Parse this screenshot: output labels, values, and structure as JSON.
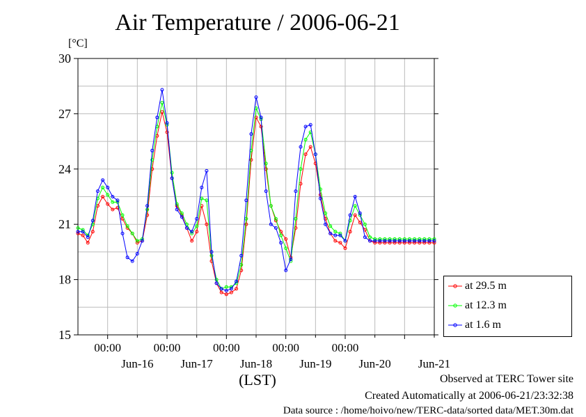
{
  "chart_data": {
    "type": "line",
    "title": "Air Temperature / 2006-06-21",
    "unit_label": "[°C]",
    "xlabel": "(LST)",
    "ylim": [
      15,
      30
    ],
    "y_ticks": [
      15,
      18,
      21,
      24,
      27,
      30
    ],
    "x_range_days": [
      "2006-06-15 12:00",
      "2006-06-21 12:00"
    ],
    "x_tick_time_label": "00:00",
    "x_day_labels": [
      "Jun-16",
      "Jun-17",
      "Jun-18",
      "Jun-19",
      "Jun-20",
      "Jun-21"
    ],
    "grid": true,
    "legend_position": "outside-right-bottom",
    "series": [
      {
        "name": "at 29.5 m",
        "color": "#ff0000",
        "x": [
          "06-15 12:00",
          "06-15 14:00",
          "06-15 16:00",
          "06-15 18:00",
          "06-15 20:00",
          "06-15 22:00",
          "06-16 00:00",
          "06-16 02:00",
          "06-16 04:00",
          "06-16 06:00",
          "06-16 08:00",
          "06-16 10:00",
          "06-16 12:00",
          "06-16 14:00",
          "06-16 16:00",
          "06-16 18:00",
          "06-16 20:00",
          "06-16 22:00",
          "06-17 00:00",
          "06-17 02:00",
          "06-17 04:00",
          "06-17 06:00",
          "06-17 08:00",
          "06-17 10:00",
          "06-17 12:00",
          "06-17 14:00",
          "06-17 16:00",
          "06-17 18:00",
          "06-17 20:00",
          "06-17 22:00",
          "06-18 00:00",
          "06-18 02:00",
          "06-18 04:00",
          "06-18 06:00",
          "06-18 08:00",
          "06-18 10:00",
          "06-18 12:00",
          "06-18 14:00",
          "06-18 16:00",
          "06-18 18:00",
          "06-18 20:00",
          "06-18 22:00",
          "06-19 00:00",
          "06-19 02:00",
          "06-19 04:00",
          "06-19 06:00",
          "06-19 08:00",
          "06-19 10:00",
          "06-19 12:00",
          "06-19 14:00",
          "06-19 16:00",
          "06-19 18:00",
          "06-19 20:00",
          "06-19 22:00",
          "06-20 00:00",
          "06-20 02:00",
          "06-20 04:00",
          "06-20 06:00",
          "06-20 08:00",
          "06-20 10:00",
          "06-20 12:00",
          "06-20 14:00",
          "06-20 16:00",
          "06-20 18:00",
          "06-20 20:00",
          "06-20 22:00",
          "06-21 00:00",
          "06-21 02:00",
          "06-21 04:00",
          "06-21 06:00",
          "06-21 08:00",
          "06-21 10:00",
          "06-21 12:00"
        ],
        "values": [
          20.5,
          20.4,
          20.0,
          20.6,
          22.0,
          22.5,
          22.1,
          21.8,
          21.9,
          21.3,
          20.8,
          20.5,
          20.0,
          20.1,
          21.5,
          24.0,
          25.8,
          27.1,
          26.0,
          23.5,
          22.0,
          21.5,
          20.8,
          20.1,
          20.6,
          22.0,
          21.0,
          19.0,
          17.8,
          17.3,
          17.2,
          17.3,
          17.5,
          18.5,
          21.0,
          24.5,
          26.8,
          26.3,
          24.0,
          22.0,
          21.2,
          20.6,
          20.2,
          19.2,
          20.8,
          23.2,
          24.8,
          25.2,
          24.3,
          22.6,
          21.3,
          20.5,
          20.1,
          20.0,
          19.7,
          20.6,
          21.5,
          21.1,
          20.7,
          20.1,
          20.0,
          20.0,
          20.0,
          20.0,
          20.0,
          20.0,
          20.0,
          20.0,
          20.0,
          20.0,
          20.0,
          20.0,
          20.0
        ]
      },
      {
        "name": "at 12.3 m",
        "color": "#00ff00",
        "x": [
          "06-15 12:00",
          "06-15 14:00",
          "06-15 16:00",
          "06-15 18:00",
          "06-15 20:00",
          "06-15 22:00",
          "06-16 00:00",
          "06-16 02:00",
          "06-16 04:00",
          "06-16 06:00",
          "06-16 08:00",
          "06-16 10:00",
          "06-16 12:00",
          "06-16 14:00",
          "06-16 16:00",
          "06-16 18:00",
          "06-16 20:00",
          "06-16 22:00",
          "06-17 00:00",
          "06-17 02:00",
          "06-17 04:00",
          "06-17 06:00",
          "06-17 08:00",
          "06-17 10:00",
          "06-17 12:00",
          "06-17 14:00",
          "06-17 16:00",
          "06-17 18:00",
          "06-17 20:00",
          "06-17 22:00",
          "06-18 00:00",
          "06-18 02:00",
          "06-18 04:00",
          "06-18 06:00",
          "06-18 08:00",
          "06-18 10:00",
          "06-18 12:00",
          "06-18 14:00",
          "06-18 16:00",
          "06-18 18:00",
          "06-18 20:00",
          "06-18 22:00",
          "06-19 00:00",
          "06-19 02:00",
          "06-19 04:00",
          "06-19 06:00",
          "06-19 08:00",
          "06-19 10:00",
          "06-19 12:00",
          "06-19 14:00",
          "06-19 16:00",
          "06-19 18:00",
          "06-19 20:00",
          "06-19 22:00",
          "06-20 00:00",
          "06-20 02:00",
          "06-20 04:00",
          "06-20 06:00",
          "06-20 08:00",
          "06-20 10:00",
          "06-20 12:00",
          "06-20 14:00",
          "06-20 16:00",
          "06-20 18:00",
          "06-20 20:00",
          "06-20 22:00",
          "06-21 00:00",
          "06-21 02:00",
          "06-21 04:00",
          "06-21 06:00",
          "06-21 08:00",
          "06-21 10:00",
          "06-21 12:00"
        ],
        "values": [
          20.8,
          20.7,
          20.4,
          21.0,
          22.4,
          23.0,
          22.6,
          22.2,
          22.2,
          21.5,
          20.9,
          20.5,
          20.1,
          20.2,
          21.8,
          24.5,
          26.3,
          27.6,
          26.4,
          23.8,
          22.1,
          21.6,
          21.0,
          20.5,
          20.9,
          22.4,
          22.3,
          19.3,
          18.0,
          17.5,
          17.6,
          17.6,
          17.8,
          18.8,
          21.3,
          25.0,
          27.3,
          26.7,
          24.3,
          22.0,
          21.3,
          20.4,
          19.7,
          19.0,
          21.3,
          24.0,
          25.6,
          26.0,
          24.8,
          22.9,
          21.6,
          20.9,
          20.6,
          20.5,
          20.1,
          21.2,
          22.0,
          21.5,
          21.0,
          20.3,
          20.2,
          20.2,
          20.2,
          20.2,
          20.2,
          20.2,
          20.2,
          20.2,
          20.2,
          20.2,
          20.2,
          20.2,
          20.2
        ]
      },
      {
        "name": "at 1.6 m",
        "color": "#0000ff",
        "x": [
          "06-15 12:00",
          "06-15 14:00",
          "06-15 16:00",
          "06-15 18:00",
          "06-15 20:00",
          "06-15 22:00",
          "06-16 00:00",
          "06-16 02:00",
          "06-16 04:00",
          "06-16 06:00",
          "06-16 08:00",
          "06-16 10:00",
          "06-16 12:00",
          "06-16 14:00",
          "06-16 16:00",
          "06-16 18:00",
          "06-16 20:00",
          "06-16 22:00",
          "06-17 00:00",
          "06-17 02:00",
          "06-17 04:00",
          "06-17 06:00",
          "06-17 08:00",
          "06-17 10:00",
          "06-17 12:00",
          "06-17 14:00",
          "06-17 16:00",
          "06-17 18:00",
          "06-17 20:00",
          "06-17 22:00",
          "06-18 00:00",
          "06-18 02:00",
          "06-18 04:00",
          "06-18 06:00",
          "06-18 08:00",
          "06-18 10:00",
          "06-18 12:00",
          "06-18 14:00",
          "06-18 16:00",
          "06-18 18:00",
          "06-18 20:00",
          "06-18 22:00",
          "06-19 00:00",
          "06-19 02:00",
          "06-19 04:00",
          "06-19 06:00",
          "06-19 08:00",
          "06-19 10:00",
          "06-19 12:00",
          "06-19 14:00",
          "06-19 16:00",
          "06-19 18:00",
          "06-19 20:00",
          "06-19 22:00",
          "06-20 00:00",
          "06-20 02:00",
          "06-20 04:00",
          "06-20 06:00",
          "06-20 08:00",
          "06-20 10:00",
          "06-20 12:00",
          "06-20 14:00",
          "06-20 16:00",
          "06-20 18:00",
          "06-20 20:00",
          "06-20 22:00",
          "06-21 00:00",
          "06-21 02:00",
          "06-21 04:00",
          "06-21 06:00",
          "06-21 08:00",
          "06-21 10:00",
          "06-21 12:00"
        ],
        "values": [
          20.6,
          20.6,
          20.3,
          21.2,
          22.8,
          23.4,
          23.0,
          22.5,
          22.3,
          20.5,
          19.2,
          19.0,
          19.4,
          20.1,
          22.0,
          25.0,
          26.8,
          28.3,
          26.5,
          23.5,
          21.8,
          21.4,
          20.8,
          20.6,
          21.3,
          23.0,
          23.9,
          19.5,
          17.8,
          17.5,
          17.4,
          17.5,
          17.9,
          19.3,
          22.3,
          25.9,
          27.9,
          26.8,
          22.8,
          21.0,
          20.8,
          20.0,
          18.5,
          19.1,
          22.8,
          25.2,
          26.3,
          26.4,
          24.8,
          22.4,
          21.0,
          20.5,
          20.4,
          20.4,
          20.1,
          21.5,
          22.5,
          21.6,
          20.3,
          20.1,
          20.1,
          20.1,
          20.1,
          20.1,
          20.1,
          20.1,
          20.1,
          20.1,
          20.1,
          20.1,
          20.1,
          20.1,
          20.1
        ]
      }
    ]
  },
  "footer": {
    "line1": "Observed at TERC Tower site",
    "line2": "Created Automatically at 2006-06-21/23:32:38",
    "line3": "Data source : /home/hoivo/new/TERC-data/sorted  data/MET.30m.dat"
  }
}
